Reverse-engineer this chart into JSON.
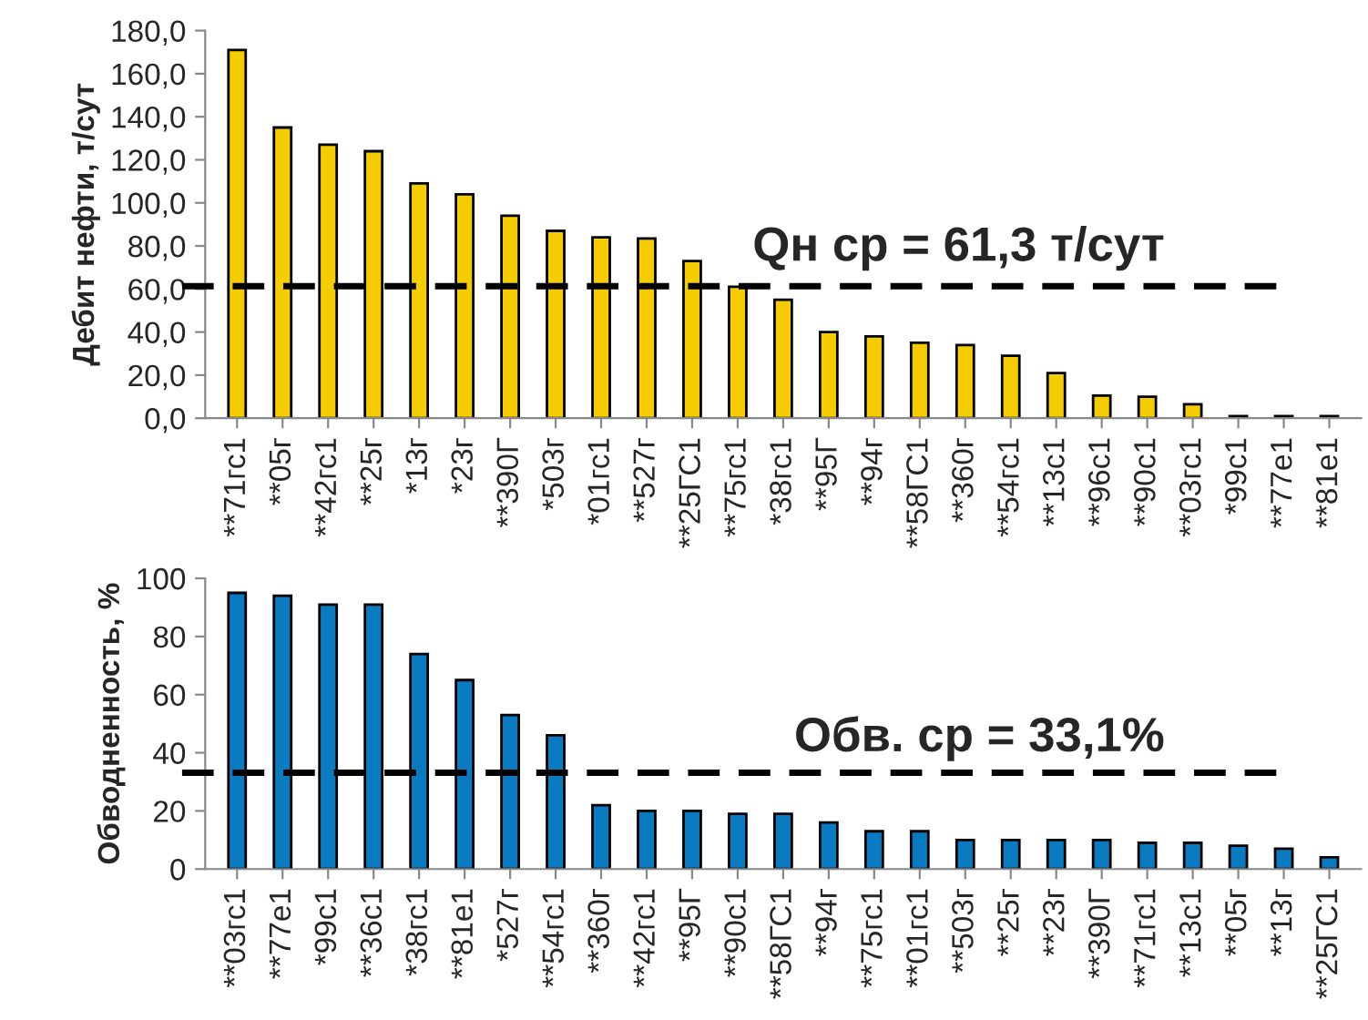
{
  "chart_data": [
    {
      "type": "bar",
      "ylabel": "Дебит нефти, т/сут",
      "categories": [
        "**71гс1",
        "**05г",
        "**42гс1",
        "**25г",
        "*13г",
        "*23г",
        "**390Г",
        "*503г",
        "*01гс1",
        "**527г",
        "**25ГС1",
        "**75гс1",
        "*38гс1",
        "**95Г",
        "**94г",
        "**58ГС1",
        "**360г",
        "**54гс1",
        "**13с1",
        "**96с1",
        "**90с1",
        "**03гс1",
        "*99с1",
        "**77е1",
        "**81е1"
      ],
      "series": [
        {
          "color": "#f5cc00",
          "values": [
            171,
            135,
            127,
            124,
            109,
            104,
            94,
            87,
            84,
            83.5,
            73,
            61,
            55,
            40,
            38,
            35,
            34,
            29,
            21,
            10.5,
            10,
            6.5,
            1,
            1,
            1
          ]
        }
      ],
      "ylim": [
        0,
        180
      ],
      "yticks": [
        {
          "value": 0,
          "label": "0,0"
        },
        {
          "value": 20,
          "label": "20,0"
        },
        {
          "value": 40,
          "label": "40,0"
        },
        {
          "value": 60,
          "label": "60,0"
        },
        {
          "value": 80,
          "label": "80,0"
        },
        {
          "value": 100,
          "label": "100,0"
        },
        {
          "value": 120,
          "label": "120,0"
        },
        {
          "value": 140,
          "label": "140,0"
        },
        {
          "value": 160,
          "label": "160,0"
        },
        {
          "value": 180,
          "label": "180,0"
        }
      ],
      "ref_lines": [
        {
          "axis": "y",
          "value": 61.3,
          "label": "Qн ср = 61,3 т/сут",
          "color": "#000000",
          "line_style": "dashed"
        }
      ],
      "grid": false,
      "legend": false
    },
    {
      "type": "bar",
      "ylabel": "Обводненность, %",
      "categories": [
        "**03гс1",
        "**77е1",
        "*99с1",
        "**36с1",
        "*38гс1",
        "**81е1",
        "*527г",
        "**54гс1",
        "**360г",
        "**42гс1",
        "**95Г",
        "**90с1",
        "**58ГС1",
        "**94г",
        "**75гс1",
        "**01гс1",
        "**503г",
        "**25г",
        "**23г",
        "**390Г",
        "**71гс1",
        "**13с1",
        "**05г",
        "**13г",
        "**25ГС1"
      ],
      "series": [
        {
          "color": "#0b7bc1",
          "values": [
            95,
            94,
            91,
            91,
            74,
            65,
            53,
            46,
            22,
            20,
            20,
            19,
            19,
            16,
            13,
            13,
            10,
            10,
            10,
            10,
            9,
            9,
            8,
            7,
            4
          ]
        }
      ],
      "ylim": [
        0,
        100
      ],
      "yticks": [
        0,
        20,
        40,
        60,
        80,
        100
      ],
      "ref_lines": [
        {
          "axis": "y",
          "value": 33.1,
          "label": "Обв. ср = 33,1%",
          "color": "#000000",
          "line_style": "dashed"
        }
      ],
      "grid": false,
      "legend": false
    }
  ]
}
